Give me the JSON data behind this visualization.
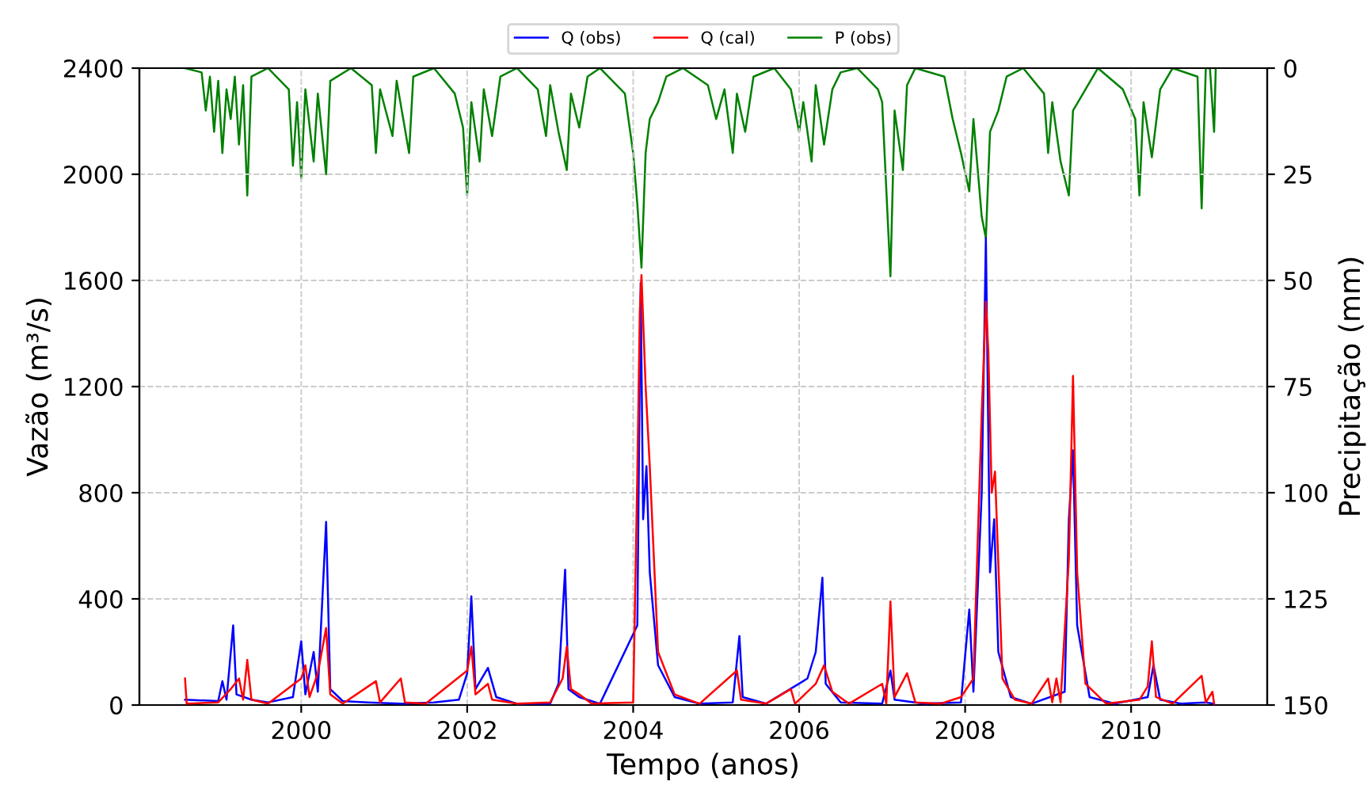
{
  "chart_data": {
    "type": "line",
    "xlabel": "Tempo (anos)",
    "ylabel": "Vazão (m³/s)",
    "y2label": "Precipitação (mm)",
    "xlim": [
      1998.05,
      2011.64
    ],
    "xticks": [
      2000,
      2002,
      2004,
      2006,
      2008,
      2010
    ],
    "ylim": [
      0,
      2400
    ],
    "yticks": [
      0,
      400,
      800,
      1200,
      1600,
      2000,
      2400
    ],
    "y2lim": [
      150,
      0
    ],
    "y2ticks": [
      0,
      25,
      50,
      75,
      100,
      125,
      150
    ],
    "grid": true,
    "legend": "top",
    "line_style": "solid",
    "marker": "none",
    "series": [
      {
        "name": "Q (obs)",
        "color": "#0000ff",
        "x": [
          1998.6,
          1999.0,
          1999.05,
          1999.1,
          1999.18,
          1999.22,
          1999.4,
          1999.6,
          1999.9,
          2000.0,
          2000.05,
          2000.15,
          2000.2,
          2000.3,
          2000.35,
          2000.5,
          2000.8,
          2001.2,
          2001.6,
          2001.9,
          2002.0,
          2002.05,
          2002.1,
          2002.25,
          2002.35,
          2002.6,
          2003.0,
          2003.1,
          2003.18,
          2003.22,
          2003.35,
          2003.6,
          2004.05,
          2004.09,
          2004.12,
          2004.16,
          2004.2,
          2004.3,
          2004.5,
          2004.8,
          2005.2,
          2005.28,
          2005.32,
          2005.6,
          2006.1,
          2006.2,
          2006.28,
          2006.32,
          2006.5,
          2007.0,
          2007.1,
          2007.15,
          2007.5,
          2007.95,
          2008.05,
          2008.1,
          2008.2,
          2008.25,
          2008.3,
          2008.35,
          2008.4,
          2008.55,
          2008.8,
          2009.2,
          2009.25,
          2009.3,
          2009.35,
          2009.5,
          2009.8,
          2010.2,
          2010.27,
          2010.35,
          2010.6,
          2010.9,
          2011.0
        ],
        "values": [
          20,
          15,
          90,
          20,
          300,
          40,
          20,
          10,
          30,
          240,
          40,
          200,
          50,
          690,
          60,
          15,
          10,
          5,
          10,
          20,
          120,
          410,
          60,
          140,
          30,
          5,
          5,
          80,
          510,
          60,
          30,
          5,
          300,
          1590,
          700,
          900,
          500,
          150,
          30,
          5,
          10,
          260,
          30,
          5,
          100,
          200,
          480,
          80,
          10,
          5,
          130,
          20,
          5,
          10,
          360,
          50,
          800,
          1760,
          500,
          700,
          200,
          30,
          5,
          50,
          700,
          960,
          300,
          30,
          5,
          30,
          150,
          20,
          5,
          10,
          5
        ]
      },
      {
        "name": "Q (cal)",
        "color": "#ff0000",
        "x": [
          1998.6,
          1998.62,
          1999.0,
          1999.15,
          1999.25,
          1999.3,
          1999.35,
          1999.4,
          1999.6,
          2000.0,
          2000.05,
          2000.1,
          2000.2,
          2000.3,
          2000.35,
          2000.5,
          2000.9,
          2000.95,
          2001.2,
          2001.25,
          2001.5,
          2002.0,
          2002.05,
          2002.1,
          2002.25,
          2002.3,
          2002.6,
          2003.0,
          2003.15,
          2003.2,
          2003.25,
          2003.35,
          2003.5,
          2004.0,
          2004.05,
          2004.08,
          2004.1,
          2004.15,
          2004.2,
          2004.3,
          2004.5,
          2004.8,
          2005.25,
          2005.3,
          2005.6,
          2005.9,
          2005.95,
          2006.2,
          2006.3,
          2006.4,
          2006.6,
          2007.0,
          2007.05,
          2007.1,
          2007.15,
          2007.3,
          2007.4,
          2007.7,
          2007.95,
          2008.1,
          2008.2,
          2008.25,
          2008.28,
          2008.32,
          2008.36,
          2008.45,
          2008.6,
          2008.8,
          2009.0,
          2009.05,
          2009.1,
          2009.15,
          2009.25,
          2009.3,
          2009.35,
          2009.45,
          2009.7,
          2010.1,
          2010.2,
          2010.25,
          2010.3,
          2010.5,
          2010.85,
          2010.9,
          2010.98,
          2011.0
        ],
        "values": [
          100,
          5,
          10,
          60,
          100,
          20,
          170,
          20,
          5,
          100,
          150,
          30,
          120,
          290,
          40,
          5,
          90,
          10,
          100,
          10,
          5,
          130,
          220,
          40,
          80,
          20,
          5,
          10,
          100,
          220,
          60,
          40,
          5,
          10,
          870,
          1480,
          1620,
          1200,
          900,
          200,
          40,
          5,
          130,
          20,
          5,
          60,
          5,
          80,
          150,
          50,
          5,
          80,
          5,
          390,
          30,
          120,
          10,
          5,
          30,
          100,
          1100,
          1520,
          1330,
          800,
          880,
          100,
          20,
          5,
          100,
          10,
          100,
          10,
          550,
          1240,
          500,
          80,
          5,
          20,
          70,
          240,
          30,
          5,
          110,
          10,
          50,
          5
        ]
      },
      {
        "name": "P (obs)",
        "color": "#008000",
        "axis": "y2",
        "x": [
          1998.6,
          1998.8,
          1998.85,
          1998.9,
          1998.95,
          1999.0,
          1999.05,
          1999.1,
          1999.15,
          1999.2,
          1999.25,
          1999.3,
          1999.35,
          1999.4,
          1999.6,
          1999.85,
          1999.9,
          1999.95,
          2000.0,
          2000.05,
          2000.15,
          2000.2,
          2000.3,
          2000.35,
          2000.6,
          2000.85,
          2000.9,
          2000.95,
          2001.1,
          2001.15,
          2001.3,
          2001.35,
          2001.6,
          2001.85,
          2001.95,
          2002.0,
          2002.05,
          2002.15,
          2002.2,
          2002.3,
          2002.4,
          2002.6,
          2002.85,
          2002.95,
          2003.0,
          2003.1,
          2003.2,
          2003.25,
          2003.35,
          2003.45,
          2003.6,
          2003.9,
          2004.0,
          2004.05,
          2004.1,
          2004.15,
          2004.2,
          2004.3,
          2004.4,
          2004.6,
          2004.9,
          2005.0,
          2005.1,
          2005.2,
          2005.25,
          2005.35,
          2005.45,
          2005.7,
          2005.9,
          2006.0,
          2006.05,
          2006.15,
          2006.2,
          2006.3,
          2006.4,
          2006.5,
          2006.7,
          2006.95,
          2007.0,
          2007.1,
          2007.15,
          2007.25,
          2007.3,
          2007.4,
          2007.75,
          2007.85,
          2007.95,
          2008.05,
          2008.1,
          2008.2,
          2008.25,
          2008.3,
          2008.4,
          2008.5,
          2008.7,
          2008.95,
          2009.0,
          2009.05,
          2009.15,
          2009.25,
          2009.3,
          2009.45,
          2009.6,
          2009.9,
          2010.05,
          2010.1,
          2010.15,
          2010.25,
          2010.35,
          2010.5,
          2010.8,
          2010.85,
          2010.9,
          2010.95,
          2011.0,
          2011.02
        ],
        "values": [
          0,
          1,
          10,
          2,
          15,
          3,
          20,
          5,
          12,
          2,
          18,
          4,
          30,
          2,
          0,
          5,
          23,
          8,
          26,
          5,
          22,
          6,
          25,
          3,
          0,
          4,
          20,
          5,
          16,
          3,
          20,
          2,
          0,
          6,
          14,
          30,
          8,
          22,
          5,
          16,
          2,
          0,
          5,
          16,
          4,
          15,
          24,
          6,
          14,
          2,
          0,
          6,
          20,
          32,
          47,
          20,
          12,
          8,
          2,
          0,
          4,
          12,
          5,
          20,
          6,
          15,
          2,
          0,
          5,
          15,
          8,
          22,
          4,
          18,
          5,
          1,
          0,
          5,
          8,
          49,
          10,
          24,
          4,
          0,
          2,
          12,
          20,
          29,
          12,
          35,
          40,
          15,
          10,
          2,
          0,
          6,
          20,
          8,
          22,
          30,
          10,
          5,
          0,
          5,
          12,
          30,
          8,
          21,
          5,
          0,
          2,
          33,
          0,
          0,
          15,
          0
        ]
      }
    ]
  }
}
